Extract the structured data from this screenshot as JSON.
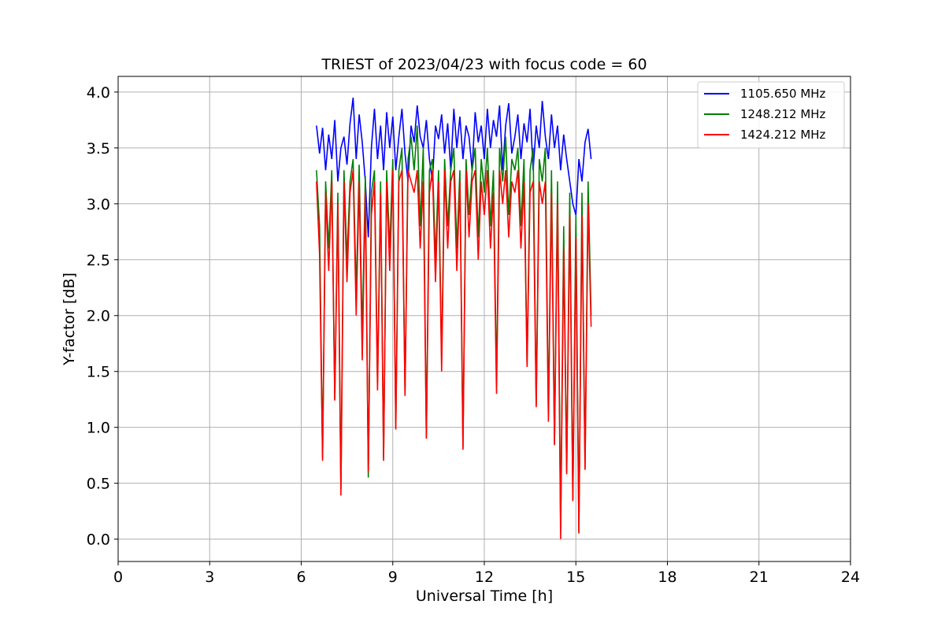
{
  "chart_data": {
    "type": "line",
    "title": "TRIEST of 2023/04/23 with focus code = 60",
    "xlabel": "Universal Time [h]",
    "ylabel": "Y-factor [dB]",
    "xlim": [
      0,
      24
    ],
    "ylim": [
      -0.2,
      4.14
    ],
    "xticks": [
      "0",
      "3",
      "6",
      "9",
      "12",
      "15",
      "18",
      "21",
      "24"
    ],
    "yticks": [
      "0.0",
      "0.5",
      "1.0",
      "1.5",
      "2.0",
      "2.5",
      "3.0",
      "3.5",
      "4.0"
    ],
    "grid": true,
    "legend_position": "top-right",
    "series": [
      {
        "name": "1105.650 MHz",
        "color": "#0000ff",
        "x": [
          6.5,
          6.6,
          6.7,
          6.8,
          6.9,
          7.0,
          7.1,
          7.2,
          7.3,
          7.4,
          7.5,
          7.6,
          7.7,
          7.8,
          7.9,
          8.0,
          8.1,
          8.2,
          8.3,
          8.4,
          8.5,
          8.6,
          8.7,
          8.8,
          8.9,
          9.0,
          9.1,
          9.2,
          9.3,
          9.4,
          9.5,
          9.6,
          9.7,
          9.8,
          9.9,
          10.0,
          10.1,
          10.2,
          10.3,
          10.4,
          10.5,
          10.6,
          10.7,
          10.8,
          10.9,
          11.0,
          11.1,
          11.2,
          11.3,
          11.4,
          11.5,
          11.6,
          11.7,
          11.8,
          11.9,
          12.0,
          12.1,
          12.2,
          12.3,
          12.4,
          12.5,
          12.6,
          12.7,
          12.8,
          12.9,
          13.0,
          13.1,
          13.2,
          13.3,
          13.4,
          13.5,
          13.6,
          13.7,
          13.8,
          13.9,
          14.0,
          14.1,
          14.2,
          14.3,
          14.4,
          14.5,
          14.6,
          14.7,
          14.8,
          14.9,
          15.0,
          15.1,
          15.2,
          15.3,
          15.4,
          15.5
        ],
        "y": [
          3.7,
          3.45,
          3.68,
          3.3,
          3.62,
          3.4,
          3.75,
          3.2,
          3.5,
          3.6,
          3.35,
          3.72,
          3.95,
          3.4,
          3.8,
          3.55,
          3.2,
          2.7,
          3.5,
          3.85,
          3.4,
          3.7,
          3.3,
          3.82,
          3.5,
          3.78,
          3.3,
          3.6,
          3.85,
          3.45,
          3.2,
          3.7,
          3.55,
          3.88,
          3.6,
          3.5,
          3.75,
          3.4,
          3.2,
          3.7,
          3.58,
          3.8,
          3.45,
          3.72,
          3.3,
          3.85,
          3.5,
          3.78,
          3.4,
          3.7,
          3.6,
          3.3,
          3.82,
          3.55,
          3.7,
          3.4,
          3.85,
          3.5,
          3.75,
          3.6,
          3.88,
          3.3,
          3.7,
          3.9,
          3.45,
          3.6,
          3.8,
          3.4,
          3.72,
          3.55,
          3.85,
          3.3,
          3.7,
          3.5,
          3.92,
          3.6,
          3.4,
          3.8,
          3.5,
          3.7,
          3.3,
          3.62,
          3.4,
          3.2,
          3.0,
          2.9,
          3.4,
          3.2,
          3.55,
          3.67,
          3.4
        ]
      },
      {
        "name": "1248.212 MHz",
        "color": "#008000",
        "x": [
          6.5,
          6.6,
          6.7,
          6.8,
          6.9,
          7.0,
          7.1,
          7.2,
          7.3,
          7.4,
          7.5,
          7.6,
          7.7,
          7.8,
          7.9,
          8.0,
          8.1,
          8.2,
          8.3,
          8.4,
          8.5,
          8.6,
          8.7,
          8.8,
          8.9,
          9.0,
          9.1,
          9.2,
          9.3,
          9.4,
          9.5,
          9.6,
          9.7,
          9.8,
          9.9,
          10.0,
          10.1,
          10.2,
          10.3,
          10.4,
          10.5,
          10.6,
          10.7,
          10.8,
          10.9,
          11.0,
          11.1,
          11.2,
          11.3,
          11.4,
          11.5,
          11.6,
          11.7,
          11.8,
          11.9,
          12.0,
          12.1,
          12.2,
          12.3,
          12.4,
          12.5,
          12.6,
          12.7,
          12.8,
          12.9,
          13.0,
          13.1,
          13.2,
          13.3,
          13.4,
          13.5,
          13.6,
          13.7,
          13.8,
          13.9,
          14.0,
          14.1,
          14.2,
          14.3,
          14.4,
          14.5,
          14.6,
          14.7,
          14.8,
          14.9,
          15.0,
          15.1,
          15.2,
          15.3,
          15.4,
          15.5
        ],
        "y": [
          3.3,
          2.8,
          0.72,
          3.2,
          2.6,
          3.3,
          1.25,
          3.1,
          0.45,
          3.3,
          2.5,
          3.2,
          3.4,
          2.2,
          3.35,
          1.8,
          3.25,
          0.55,
          3.1,
          3.3,
          1.4,
          3.2,
          0.72,
          3.3,
          2.6,
          3.4,
          1.0,
          3.3,
          3.5,
          1.3,
          3.4,
          3.6,
          3.3,
          3.7,
          2.8,
          3.5,
          0.9,
          3.3,
          3.4,
          2.5,
          3.3,
          1.6,
          3.4,
          2.8,
          3.3,
          3.5,
          2.6,
          3.3,
          0.82,
          3.4,
          2.9,
          3.3,
          3.5,
          2.7,
          3.4,
          3.1,
          3.5,
          2.8,
          3.3,
          1.4,
          3.5,
          3.2,
          3.6,
          2.9,
          3.4,
          3.3,
          3.5,
          2.8,
          3.4,
          1.56,
          3.3,
          3.5,
          1.2,
          3.4,
          3.2,
          3.5,
          1.1,
          3.3,
          0.85,
          3.2,
          0.1,
          2.8,
          0.6,
          3.1,
          0.35,
          2.9,
          0.06,
          3.1,
          0.63,
          3.2,
          2.0
        ]
      },
      {
        "name": "1424.212 MHz",
        "color": "#ff0000",
        "x": [
          6.5,
          6.6,
          6.7,
          6.8,
          6.9,
          7.0,
          7.1,
          7.2,
          7.3,
          7.4,
          7.5,
          7.6,
          7.7,
          7.8,
          7.9,
          8.0,
          8.1,
          8.2,
          8.3,
          8.4,
          8.5,
          8.6,
          8.7,
          8.8,
          8.9,
          9.0,
          9.1,
          9.2,
          9.3,
          9.4,
          9.5,
          9.6,
          9.7,
          9.8,
          9.9,
          10.0,
          10.1,
          10.2,
          10.3,
          10.4,
          10.5,
          10.6,
          10.7,
          10.8,
          10.9,
          11.0,
          11.1,
          11.2,
          11.3,
          11.4,
          11.5,
          11.6,
          11.7,
          11.8,
          11.9,
          12.0,
          12.1,
          12.2,
          12.3,
          12.4,
          12.5,
          12.6,
          12.7,
          12.8,
          12.9,
          13.0,
          13.1,
          13.2,
          13.3,
          13.4,
          13.5,
          13.6,
          13.7,
          13.8,
          13.9,
          14.0,
          14.1,
          14.2,
          14.3,
          14.4,
          14.5,
          14.6,
          14.7,
          14.8,
          14.9,
          15.0,
          15.1,
          15.2,
          15.3,
          15.4,
          15.5
        ],
        "y": [
          3.2,
          2.55,
          0.7,
          3.1,
          2.4,
          3.2,
          1.24,
          3.0,
          0.39,
          3.2,
          2.3,
          3.1,
          3.3,
          2.0,
          3.2,
          1.6,
          3.1,
          0.6,
          2.9,
          3.2,
          1.33,
          3.1,
          0.7,
          3.2,
          2.4,
          3.3,
          0.98,
          3.2,
          3.3,
          1.28,
          3.3,
          3.2,
          3.1,
          3.3,
          2.6,
          3.2,
          0.9,
          3.1,
          3.3,
          2.3,
          3.2,
          1.5,
          3.3,
          2.6,
          3.2,
          3.3,
          2.4,
          3.2,
          0.8,
          3.3,
          2.7,
          3.2,
          3.3,
          2.5,
          3.2,
          2.9,
          3.3,
          2.6,
          3.1,
          1.3,
          3.3,
          3.0,
          3.3,
          2.7,
          3.2,
          3.1,
          3.3,
          2.6,
          3.2,
          1.54,
          3.1,
          3.2,
          1.18,
          3.2,
          3.0,
          3.2,
          1.05,
          3.1,
          0.84,
          3.0,
          0.0,
          2.6,
          0.58,
          2.9,
          0.34,
          2.7,
          0.05,
          2.9,
          0.62,
          3.0,
          1.9
        ]
      }
    ]
  }
}
